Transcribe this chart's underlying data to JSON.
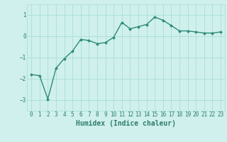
{
  "x": [
    0,
    1,
    2,
    3,
    4,
    5,
    6,
    7,
    8,
    9,
    10,
    11,
    12,
    13,
    14,
    15,
    16,
    17,
    18,
    19,
    20,
    21,
    22,
    23
  ],
  "y": [
    -1.8,
    -1.85,
    -2.95,
    -1.5,
    -1.05,
    -0.7,
    -0.15,
    -0.2,
    -0.35,
    -0.3,
    -0.05,
    0.65,
    0.35,
    0.45,
    0.55,
    0.9,
    0.75,
    0.5,
    0.25,
    0.25,
    0.2,
    0.15,
    0.15,
    0.2
  ],
  "line_color": "#2e8b7a",
  "marker": "D",
  "marker_size": 2.0,
  "linewidth": 1.0,
  "xlabel": "Humidex (Indice chaleur)",
  "ylim": [
    -3.5,
    1.5
  ],
  "xlim": [
    -0.5,
    23.5
  ],
  "yticks": [
    -3,
    -2,
    -1,
    0,
    1
  ],
  "xticks": [
    0,
    1,
    2,
    3,
    4,
    5,
    6,
    7,
    8,
    9,
    10,
    11,
    12,
    13,
    14,
    15,
    16,
    17,
    18,
    19,
    20,
    21,
    22,
    23
  ],
  "bg_color": "#cff0ec",
  "grid_color": "#aaddd8",
  "tick_fontsize": 5.5,
  "xlabel_fontsize": 7,
  "line_label_color": "#2e7d6e"
}
